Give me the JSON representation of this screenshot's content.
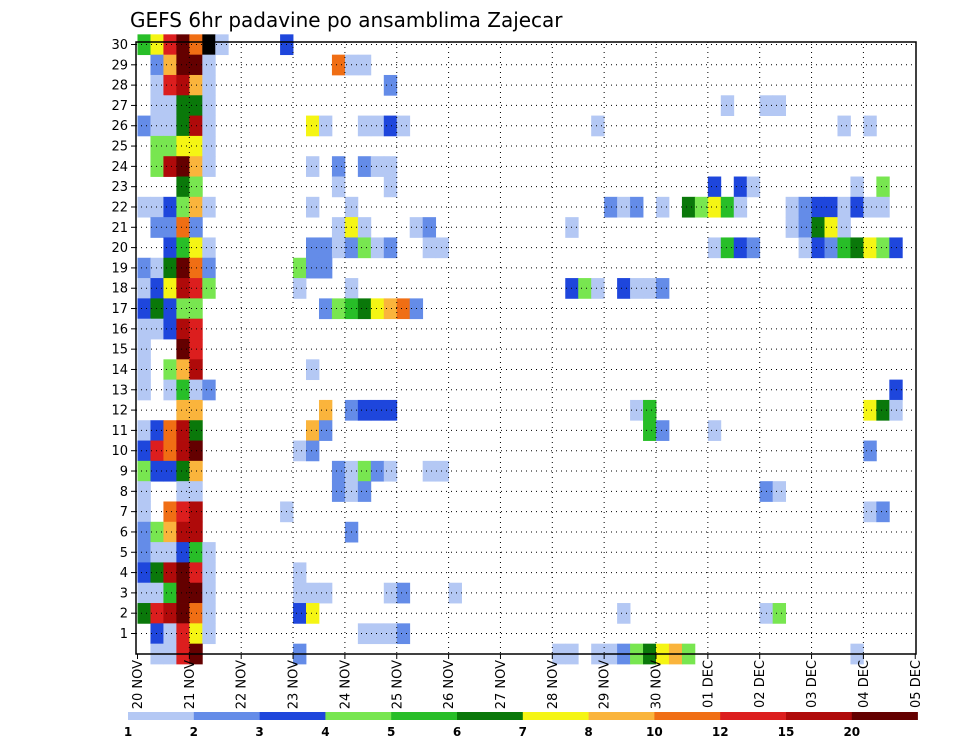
{
  "chart_data": {
    "type": "heatmap",
    "title": "GEFS 6hr padavine po ansamblima Zajecar",
    "x_labels": [
      "20 NOV",
      "21 NOV",
      "22 NOV",
      "23 NOV",
      "24 NOV",
      "25 NOV",
      "26 NOV",
      "27 NOV",
      "28 NOV",
      "29 NOV",
      "30 NOV",
      "01 DEC",
      "02 DEC",
      "03 DEC",
      "04 DEC",
      "05 DEC"
    ],
    "y_labels": [
      "1",
      "2",
      "3",
      "4",
      "5",
      "6",
      "7",
      "8",
      "9",
      "10",
      "11",
      "12",
      "13",
      "14",
      "15",
      "16",
      "17",
      "18",
      "19",
      "20",
      "21",
      "22",
      "23",
      "24",
      "25",
      "26",
      "27",
      "28",
      "29",
      "30"
    ],
    "x_step_hours": 6,
    "y_range": [
      0,
      30
    ],
    "grid": true,
    "colorbar": {
      "position": "bottom",
      "labels": [
        "1",
        "2",
        "3",
        "4",
        "5",
        "6",
        "7",
        "8",
        "10",
        "12",
        "15",
        "20"
      ],
      "colors": [
        "#b4c8f4",
        "#648ce8",
        "#1e46dc",
        "#78e650",
        "#28be28",
        "#0a780a",
        "#f5f514",
        "#fab43c",
        "#f06e14",
        "#dc1e1e",
        "#af0a0a",
        "#640000"
      ]
    },
    "cells": [
      [
        30,
        0,
        4
      ],
      [
        30,
        1,
        6
      ],
      [
        30,
        2,
        9
      ],
      [
        30,
        3,
        11
      ],
      [
        30,
        4,
        8
      ],
      [
        30,
        5,
        12
      ],
      [
        30,
        6,
        0
      ],
      [
        30,
        11,
        2
      ],
      [
        29,
        1,
        1
      ],
      [
        29,
        2,
        7
      ],
      [
        29,
        3,
        11
      ],
      [
        29,
        4,
        11
      ],
      [
        29,
        5,
        0
      ],
      [
        29,
        15,
        8
      ],
      [
        29,
        16,
        0
      ],
      [
        29,
        17,
        0
      ],
      [
        28,
        1,
        0
      ],
      [
        28,
        2,
        9
      ],
      [
        28,
        3,
        10
      ],
      [
        28,
        4,
        7
      ],
      [
        28,
        5,
        0
      ],
      [
        28,
        19,
        1
      ],
      [
        27,
        1,
        0
      ],
      [
        27,
        2,
        0
      ],
      [
        27,
        3,
        5
      ],
      [
        27,
        4,
        5
      ],
      [
        27,
        5,
        0
      ],
      [
        27,
        45,
        0
      ],
      [
        27,
        48,
        0
      ],
      [
        27,
        49,
        0
      ],
      [
        26,
        0,
        1
      ],
      [
        26,
        1,
        0
      ],
      [
        26,
        2,
        0
      ],
      [
        26,
        3,
        5
      ],
      [
        26,
        4,
        10
      ],
      [
        26,
        5,
        0
      ],
      [
        26,
        13,
        6
      ],
      [
        26,
        14,
        0
      ],
      [
        26,
        17,
        0
      ],
      [
        26,
        18,
        0
      ],
      [
        26,
        19,
        2
      ],
      [
        26,
        20,
        0
      ],
      [
        26,
        35,
        0
      ],
      [
        26,
        54,
        0
      ],
      [
        26,
        56,
        0
      ],
      [
        25,
        1,
        3
      ],
      [
        25,
        2,
        3
      ],
      [
        25,
        3,
        6
      ],
      [
        25,
        4,
        6
      ],
      [
        25,
        5,
        0
      ],
      [
        24,
        1,
        3
      ],
      [
        24,
        2,
        10
      ],
      [
        24,
        3,
        11
      ],
      [
        24,
        4,
        7
      ],
      [
        24,
        5,
        0
      ],
      [
        24,
        13,
        0
      ],
      [
        24,
        15,
        1
      ],
      [
        24,
        17,
        1
      ],
      [
        24,
        18,
        0
      ],
      [
        24,
        19,
        0
      ],
      [
        23,
        3,
        5
      ],
      [
        23,
        4,
        3
      ],
      [
        23,
        15,
        0
      ],
      [
        23,
        19,
        0
      ],
      [
        23,
        44,
        2
      ],
      [
        23,
        46,
        2
      ],
      [
        23,
        47,
        0
      ],
      [
        23,
        55,
        0
      ],
      [
        23,
        57,
        3
      ],
      [
        22,
        0,
        0
      ],
      [
        22,
        1,
        0
      ],
      [
        22,
        2,
        2
      ],
      [
        22,
        3,
        3
      ],
      [
        22,
        4,
        7
      ],
      [
        22,
        5,
        0
      ],
      [
        22,
        13,
        0
      ],
      [
        22,
        16,
        0
      ],
      [
        22,
        36,
        1
      ],
      [
        22,
        37,
        0
      ],
      [
        22,
        38,
        1
      ],
      [
        22,
        40,
        0
      ],
      [
        22,
        42,
        5
      ],
      [
        22,
        43,
        3
      ],
      [
        22,
        44,
        6
      ],
      [
        22,
        45,
        4
      ],
      [
        22,
        46,
        0
      ],
      [
        22,
        50,
        0
      ],
      [
        22,
        51,
        1
      ],
      [
        22,
        52,
        2
      ],
      [
        22,
        53,
        2
      ],
      [
        22,
        54,
        0
      ],
      [
        22,
        55,
        2
      ],
      [
        22,
        56,
        0
      ],
      [
        22,
        57,
        0
      ],
      [
        21,
        1,
        1
      ],
      [
        21,
        2,
        1
      ],
      [
        21,
        3,
        8
      ],
      [
        21,
        4,
        1
      ],
      [
        21,
        15,
        0
      ],
      [
        21,
        16,
        6
      ],
      [
        21,
        17,
        0
      ],
      [
        21,
        21,
        0
      ],
      [
        21,
        22,
        1
      ],
      [
        21,
        33,
        0
      ],
      [
        21,
        50,
        0
      ],
      [
        21,
        51,
        1
      ],
      [
        21,
        52,
        5
      ],
      [
        21,
        53,
        6
      ],
      [
        21,
        54,
        0
      ],
      [
        20,
        2,
        2
      ],
      [
        20,
        3,
        4
      ],
      [
        20,
        4,
        6
      ],
      [
        20,
        5,
        0
      ],
      [
        20,
        13,
        1
      ],
      [
        20,
        14,
        1
      ],
      [
        20,
        15,
        0
      ],
      [
        20,
        16,
        1
      ],
      [
        20,
        17,
        3
      ],
      [
        20,
        18,
        0
      ],
      [
        20,
        19,
        1
      ],
      [
        20,
        22,
        0
      ],
      [
        20,
        23,
        0
      ],
      [
        20,
        44,
        0
      ],
      [
        20,
        45,
        4
      ],
      [
        20,
        46,
        2
      ],
      [
        20,
        47,
        1
      ],
      [
        20,
        51,
        0
      ],
      [
        20,
        52,
        2
      ],
      [
        20,
        53,
        1
      ],
      [
        20,
        54,
        4
      ],
      [
        20,
        55,
        5
      ],
      [
        20,
        56,
        6
      ],
      [
        20,
        57,
        3
      ],
      [
        20,
        58,
        2
      ],
      [
        19,
        0,
        1
      ],
      [
        19,
        1,
        0
      ],
      [
        19,
        2,
        5
      ],
      [
        19,
        3,
        11
      ],
      [
        19,
        4,
        8
      ],
      [
        19,
        5,
        1
      ],
      [
        19,
        12,
        3
      ],
      [
        19,
        13,
        1
      ],
      [
        19,
        14,
        1
      ],
      [
        18,
        0,
        0
      ],
      [
        18,
        1,
        2
      ],
      [
        18,
        2,
        6
      ],
      [
        18,
        3,
        10
      ],
      [
        18,
        4,
        9
      ],
      [
        18,
        5,
        3
      ],
      [
        18,
        12,
        0
      ],
      [
        18,
        16,
        0
      ],
      [
        18,
        33,
        2
      ],
      [
        18,
        34,
        3
      ],
      [
        18,
        35,
        0
      ],
      [
        18,
        37,
        2
      ],
      [
        18,
        38,
        0
      ],
      [
        18,
        39,
        0
      ],
      [
        18,
        40,
        1
      ],
      [
        17,
        0,
        2
      ],
      [
        17,
        1,
        5
      ],
      [
        17,
        2,
        2
      ],
      [
        17,
        3,
        3
      ],
      [
        17,
        4,
        3
      ],
      [
        17,
        14,
        1
      ],
      [
        17,
        15,
        3
      ],
      [
        17,
        16,
        4
      ],
      [
        17,
        17,
        5
      ],
      [
        17,
        18,
        6
      ],
      [
        17,
        19,
        7
      ],
      [
        17,
        20,
        8
      ],
      [
        17,
        21,
        1
      ],
      [
        16,
        0,
        0
      ],
      [
        16,
        1,
        0
      ],
      [
        16,
        2,
        2
      ],
      [
        16,
        3,
        10
      ],
      [
        16,
        4,
        9
      ],
      [
        15,
        0,
        0
      ],
      [
        15,
        3,
        11
      ],
      [
        15,
        4,
        9
      ],
      [
        14,
        0,
        0
      ],
      [
        14,
        2,
        3
      ],
      [
        14,
        3,
        7
      ],
      [
        14,
        4,
        10
      ],
      [
        14,
        13,
        0
      ],
      [
        13,
        0,
        0
      ],
      [
        13,
        2,
        0
      ],
      [
        13,
        3,
        4
      ],
      [
        13,
        4,
        0
      ],
      [
        13,
        5,
        1
      ],
      [
        13,
        58,
        2
      ],
      [
        12,
        3,
        7
      ],
      [
        12,
        4,
        7
      ],
      [
        12,
        14,
        7
      ],
      [
        12,
        16,
        1
      ],
      [
        12,
        17,
        2
      ],
      [
        12,
        18,
        2
      ],
      [
        12,
        19,
        2
      ],
      [
        12,
        38,
        0
      ],
      [
        12,
        39,
        4
      ],
      [
        12,
        56,
        6
      ],
      [
        12,
        57,
        5
      ],
      [
        12,
        58,
        0
      ],
      [
        11,
        0,
        0
      ],
      [
        11,
        1,
        2
      ],
      [
        11,
        2,
        8
      ],
      [
        11,
        3,
        10
      ],
      [
        11,
        4,
        5
      ],
      [
        11,
        13,
        7
      ],
      [
        11,
        14,
        1
      ],
      [
        11,
        39,
        4
      ],
      [
        11,
        40,
        1
      ],
      [
        11,
        44,
        0
      ],
      [
        10,
        0,
        2
      ],
      [
        10,
        1,
        9
      ],
      [
        10,
        2,
        8
      ],
      [
        10,
        3,
        10
      ],
      [
        10,
        4,
        11
      ],
      [
        10,
        12,
        0
      ],
      [
        10,
        13,
        1
      ],
      [
        10,
        56,
        1
      ],
      [
        9,
        0,
        3
      ],
      [
        9,
        1,
        2
      ],
      [
        9,
        2,
        2
      ],
      [
        9,
        3,
        5
      ],
      [
        9,
        4,
        7
      ],
      [
        9,
        15,
        1
      ],
      [
        9,
        16,
        0
      ],
      [
        9,
        17,
        3
      ],
      [
        9,
        18,
        1
      ],
      [
        9,
        19,
        0
      ],
      [
        9,
        22,
        0
      ],
      [
        9,
        23,
        0
      ],
      [
        8,
        0,
        0
      ],
      [
        8,
        3,
        0
      ],
      [
        8,
        4,
        0
      ],
      [
        8,
        15,
        1
      ],
      [
        8,
        16,
        0
      ],
      [
        8,
        17,
        1
      ],
      [
        8,
        48,
        1
      ],
      [
        8,
        49,
        0
      ],
      [
        7,
        0,
        0
      ],
      [
        7,
        2,
        8
      ],
      [
        7,
        3,
        9
      ],
      [
        7,
        4,
        10
      ],
      [
        7,
        11,
        0
      ],
      [
        7,
        56,
        0
      ],
      [
        7,
        57,
        1
      ],
      [
        6,
        0,
        1
      ],
      [
        6,
        1,
        3
      ],
      [
        6,
        2,
        7
      ],
      [
        6,
        3,
        10
      ],
      [
        6,
        4,
        10
      ],
      [
        6,
        16,
        1
      ],
      [
        5,
        0,
        1
      ],
      [
        5,
        1,
        0
      ],
      [
        5,
        2,
        0
      ],
      [
        5,
        3,
        2
      ],
      [
        5,
        4,
        4
      ],
      [
        5,
        5,
        0
      ],
      [
        4,
        0,
        2
      ],
      [
        4,
        1,
        5
      ],
      [
        4,
        2,
        10
      ],
      [
        4,
        3,
        11
      ],
      [
        4,
        4,
        9
      ],
      [
        4,
        5,
        0
      ],
      [
        4,
        12,
        0
      ],
      [
        3,
        0,
        0
      ],
      [
        3,
        1,
        0
      ],
      [
        3,
        2,
        4
      ],
      [
        3,
        3,
        11
      ],
      [
        3,
        4,
        11
      ],
      [
        3,
        5,
        0
      ],
      [
        3,
        12,
        0
      ],
      [
        3,
        13,
        0
      ],
      [
        3,
        14,
        0
      ],
      [
        3,
        19,
        0
      ],
      [
        3,
        20,
        1
      ],
      [
        3,
        24,
        0
      ],
      [
        2,
        0,
        5
      ],
      [
        2,
        1,
        9
      ],
      [
        2,
        2,
        10
      ],
      [
        2,
        3,
        11
      ],
      [
        2,
        4,
        8
      ],
      [
        2,
        5,
        0
      ],
      [
        2,
        12,
        2
      ],
      [
        2,
        13,
        6
      ],
      [
        2,
        37,
        0
      ],
      [
        2,
        48,
        0
      ],
      [
        2,
        49,
        3
      ],
      [
        1,
        1,
        2
      ],
      [
        1,
        2,
        0
      ],
      [
        1,
        3,
        9
      ],
      [
        1,
        4,
        6
      ],
      [
        1,
        5,
        0
      ],
      [
        1,
        17,
        0
      ],
      [
        1,
        18,
        0
      ],
      [
        1,
        19,
        0
      ],
      [
        1,
        20,
        1
      ],
      [
        0,
        1,
        0
      ],
      [
        0,
        2,
        0
      ],
      [
        0,
        3,
        9
      ],
      [
        0,
        4,
        11
      ],
      [
        0,
        12,
        1
      ],
      [
        0,
        32,
        0
      ],
      [
        0,
        33,
        0
      ],
      [
        0,
        35,
        0
      ],
      [
        0,
        36,
        0
      ],
      [
        0,
        37,
        1
      ],
      [
        0,
        38,
        3
      ],
      [
        0,
        39,
        5
      ],
      [
        0,
        40,
        6
      ],
      [
        0,
        41,
        7
      ],
      [
        0,
        42,
        3
      ],
      [
        0,
        55,
        0
      ]
    ]
  }
}
